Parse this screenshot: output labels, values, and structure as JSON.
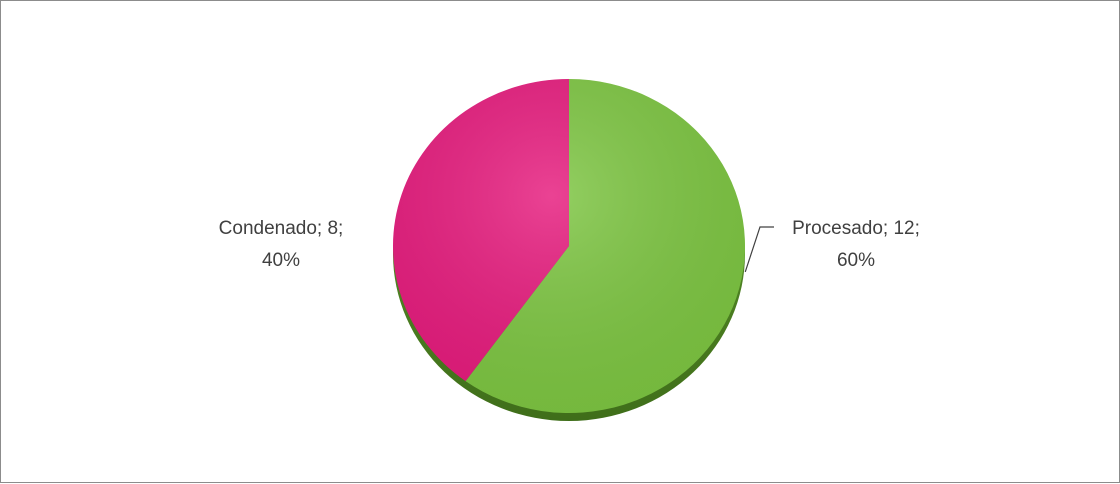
{
  "chart_data": {
    "type": "pie",
    "title": "",
    "series": [
      {
        "name": "",
        "slices": [
          {
            "category": "Procesado",
            "value": 12,
            "percent": 60,
            "color": "#7cc540",
            "label_lines": [
              "Procesado; 12;",
              "60%"
            ]
          },
          {
            "category": "Condenado",
            "value": 8,
            "percent": 40,
            "color": "#e6197c",
            "label_lines": [
              "Condenado; 8;",
              "40%"
            ]
          }
        ]
      }
    ],
    "legend": "none",
    "start_angle_deg": 0,
    "direction": "clockwise"
  }
}
